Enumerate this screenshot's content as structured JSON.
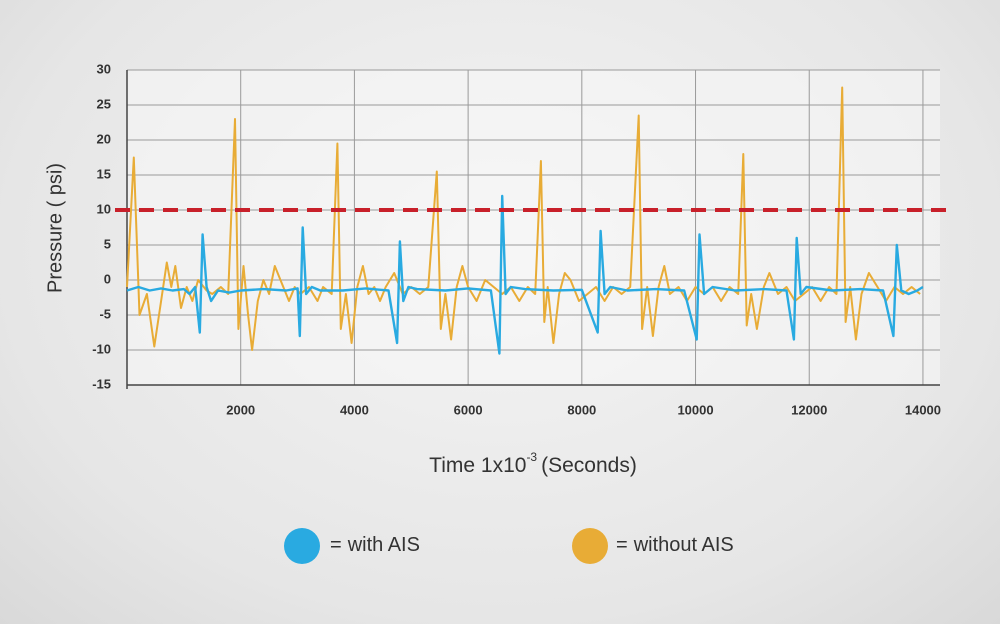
{
  "chart_data": {
    "type": "line",
    "y_label": "Pressure ( psi)",
    "x_label": "Time 1x10",
    "x_label_sup": "-3",
    "x_label_end": "(Seconds)",
    "legend_separator": "=",
    "xlim": [
      0,
      14300
    ],
    "xticks": [
      2000,
      4000,
      6000,
      8000,
      10000,
      12000,
      14000
    ],
    "ylim": [
      -15,
      30
    ],
    "yticks": [
      -15,
      -10,
      -5,
      0,
      5,
      10,
      15,
      20,
      25,
      30
    ],
    "grid": true,
    "reference_line": {
      "value": 10,
      "color": "#c8202a"
    },
    "series": [
      {
        "name": "with AIS",
        "color": "#29aae1",
        "x": [
          0,
          200,
          400,
          600,
          800,
          1000,
          1100,
          1200,
          1280,
          1330,
          1400,
          1480,
          1600,
          1800,
          2000,
          2400,
          2800,
          3000,
          3040,
          3090,
          3150,
          3250,
          3400,
          3800,
          4200,
          4600,
          4750,
          4800,
          4860,
          4950,
          5100,
          5600,
          6000,
          6400,
          6550,
          6600,
          6660,
          6750,
          7000,
          7500,
          8000,
          8280,
          8330,
          8400,
          8500,
          8800,
          9300,
          9800,
          10020,
          10070,
          10150,
          10300,
          10700,
          11200,
          11600,
          11730,
          11780,
          11850,
          11950,
          12400,
          12900,
          13300,
          13480,
          13540,
          13620,
          13750,
          13900,
          14000
        ],
        "values": [
          -1.5,
          -1,
          -1.5,
          -1.2,
          -1.5,
          -1.3,
          -2,
          -1,
          -7.5,
          6.5,
          -1,
          -3,
          -1.5,
          -1.8,
          -1.5,
          -1.3,
          -1.5,
          -1.2,
          -8,
          7.5,
          -2,
          -1,
          -1.5,
          -1.5,
          -1.2,
          -1.5,
          -9,
          5.5,
          -3,
          -1,
          -1.3,
          -1.5,
          -1.2,
          -1.5,
          -10.5,
          12,
          -2,
          -1,
          -1.3,
          -1.5,
          -1.4,
          -7.5,
          7,
          -2,
          -1,
          -1.5,
          -1.3,
          -1.5,
          -8.5,
          6.5,
          -2,
          -1,
          -1.5,
          -1.3,
          -1.5,
          -8.5,
          6,
          -2,
          -1,
          -1.5,
          -1.3,
          -1.5,
          -8,
          5,
          -1.5,
          -2,
          -1.5,
          -1
        ]
      },
      {
        "name": "without AIS",
        "color": "#e8ac36",
        "x": [
          0,
          120,
          220,
          350,
          480,
          600,
          700,
          780,
          850,
          950,
          1050,
          1150,
          1250,
          1400,
          1500,
          1650,
          1780,
          1900,
          1960,
          2050,
          2130,
          2200,
          2300,
          2400,
          2500,
          2600,
          2750,
          2850,
          2950,
          3050,
          3200,
          3350,
          3450,
          3600,
          3700,
          3760,
          3850,
          3950,
          4050,
          4150,
          4250,
          4350,
          4450,
          4550,
          4700,
          4850,
          5000,
          5150,
          5300,
          5450,
          5520,
          5600,
          5700,
          5800,
          5900,
          6000,
          6150,
          6300,
          6450,
          6600,
          6750,
          6900,
          7050,
          7180,
          7280,
          7340,
          7400,
          7500,
          7600,
          7700,
          7800,
          7950,
          8100,
          8250,
          8400,
          8550,
          8700,
          8850,
          9000,
          9060,
          9150,
          9250,
          9350,
          9450,
          9550,
          9700,
          9850,
          10000,
          10150,
          10300,
          10450,
          10600,
          10750,
          10840,
          10900,
          10980,
          11080,
          11200,
          11300,
          11450,
          11600,
          11750,
          11900,
          12050,
          12200,
          12350,
          12480,
          12580,
          12640,
          12720,
          12820,
          12920,
          13050,
          13200,
          13350,
          13500,
          13650,
          13800,
          13950
        ],
        "values": [
          -1,
          17.5,
          -5,
          -2,
          -9.5,
          -3,
          2.5,
          -1,
          2,
          -4,
          -1,
          -3,
          0,
          -1.5,
          -2,
          -1,
          -2,
          23,
          -7,
          2,
          -5,
          -10,
          -3,
          0,
          -2,
          2,
          -1,
          -3,
          -1,
          -2,
          -1,
          -3,
          -1,
          -2,
          19.5,
          -7,
          -2,
          -9,
          -1,
          2,
          -2,
          -1,
          -3,
          -1,
          1,
          -2,
          -1,
          -2,
          -1,
          15.5,
          -7,
          -2,
          -8.5,
          -1,
          2,
          -1,
          -3,
          0,
          -1,
          -2,
          -1,
          -3,
          -1,
          -2,
          17,
          -6,
          -1,
          -9,
          -2,
          1,
          0,
          -3,
          -2,
          -1,
          -3,
          -1,
          -2,
          -1,
          23.5,
          -7,
          -1,
          -8,
          -1,
          2,
          -2,
          -1,
          -3,
          -1,
          -2,
          -1,
          -3,
          -1,
          -2,
          18,
          -6.5,
          -2,
          -7,
          -1,
          1,
          -2,
          -1,
          -3,
          -2,
          -1,
          -3,
          -1,
          -2,
          27.5,
          -6,
          -1,
          -8.5,
          -2,
          1,
          -1,
          -3,
          -1,
          -2,
          -1,
          -2
        ]
      }
    ]
  }
}
